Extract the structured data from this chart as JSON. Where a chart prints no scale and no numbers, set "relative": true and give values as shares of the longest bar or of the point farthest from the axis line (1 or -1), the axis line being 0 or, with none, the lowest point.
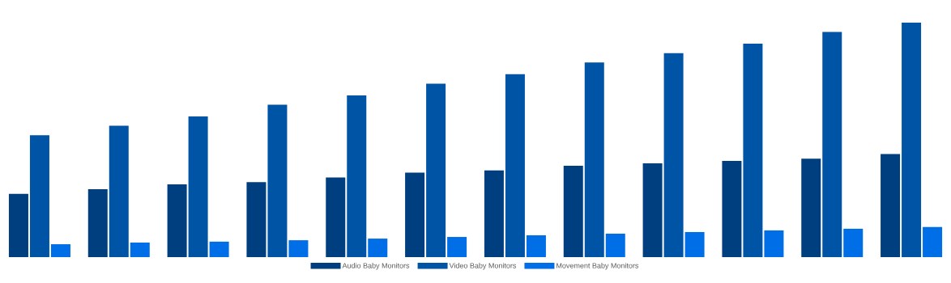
{
  "chart_data": {
    "type": "bar",
    "relative": true,
    "legend": "bottom",
    "categories": [
      null,
      null,
      null,
      null,
      null,
      null,
      null,
      null,
      null,
      null,
      null,
      null
    ],
    "series": [
      {
        "name": "Audio Baby Monitors",
        "color": "#003f7f",
        "values": [
          0.27,
          0.29,
          0.31,
          0.32,
          0.34,
          0.36,
          0.37,
          0.39,
          0.4,
          0.41,
          0.42,
          0.44
        ]
      },
      {
        "name": "Video Baby Monitors",
        "color": "#0054a6",
        "values": [
          0.52,
          0.56,
          0.6,
          0.65,
          0.69,
          0.74,
          0.78,
          0.83,
          0.87,
          0.91,
          0.96,
          1
        ]
      },
      {
        "name": "Movement Baby Monitors",
        "color": "#006ee6",
        "values": [
          0.055,
          0.062,
          0.066,
          0.072,
          0.079,
          0.086,
          0.093,
          0.1,
          0.107,
          0.114,
          0.121,
          0.128
        ]
      }
    ]
  }
}
